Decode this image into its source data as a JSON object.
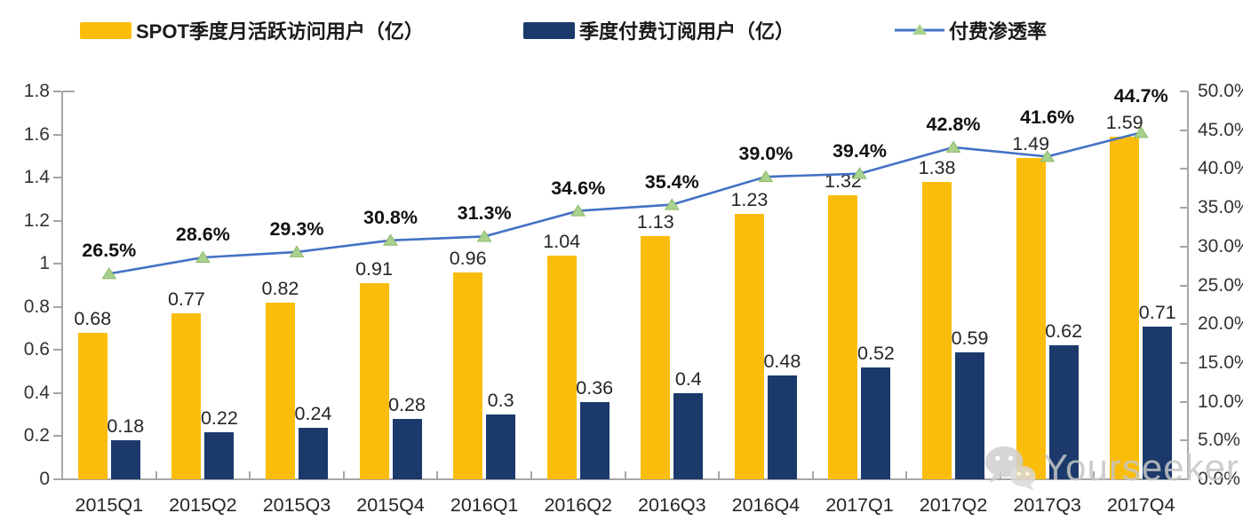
{
  "legend": {
    "items": [
      {
        "label": "SPOT季度月活跃访问用户（亿）",
        "swatch": "bar",
        "color": "#FBBD0B"
      },
      {
        "label": "季度付费订阅用户（亿）",
        "swatch": "bar",
        "color": "#1B3A6B"
      },
      {
        "label": "付费渗透率",
        "swatch": "line",
        "color": "#4472C4",
        "marker_color": "#A9D18E"
      }
    ]
  },
  "chart_data": {
    "type": "bar+line combo",
    "categories": [
      "2015Q1",
      "2015Q2",
      "2015Q3",
      "2015Q4",
      "2016Q1",
      "2016Q2",
      "2016Q3",
      "2016Q4",
      "2017Q1",
      "2017Q2",
      "2017Q3",
      "2017Q4"
    ],
    "series": [
      {
        "name": "SPOT季度月活跃访问用户（亿）",
        "type": "bar",
        "axis": "left",
        "color": "#FBBD0B",
        "values": [
          0.68,
          0.77,
          0.82,
          0.91,
          0.96,
          1.04,
          1.13,
          1.23,
          1.32,
          1.38,
          1.49,
          1.59
        ],
        "labels": [
          "0.68",
          "0.77",
          "0.82",
          "0.91",
          "0.96",
          "1.04",
          "1.13",
          "1.23",
          "1.32",
          "1.38",
          "1.49",
          "1.59"
        ]
      },
      {
        "name": "季度付费订阅用户（亿）",
        "type": "bar",
        "axis": "left",
        "color": "#1B3A6B",
        "values": [
          0.18,
          0.22,
          0.24,
          0.28,
          0.3,
          0.36,
          0.4,
          0.48,
          0.52,
          0.59,
          0.62,
          0.71
        ],
        "labels": [
          "0.18",
          "0.22",
          "0.24",
          "0.28",
          "0.3",
          "0.36",
          "0.4",
          "0.48",
          "0.52",
          "0.59",
          "0.62",
          "0.71"
        ]
      },
      {
        "name": "付费渗透率",
        "type": "line",
        "axis": "right",
        "color": "#4472C4",
        "marker": "triangle",
        "marker_color": "#A9D18E",
        "values": [
          26.5,
          28.6,
          29.3,
          30.8,
          31.3,
          34.6,
          35.4,
          39.0,
          39.4,
          42.8,
          41.6,
          44.7
        ],
        "labels": [
          "26.5%",
          "28.6%",
          "29.3%",
          "30.8%",
          "31.3%",
          "34.6%",
          "35.4%",
          "39.0%",
          "39.4%",
          "42.8%",
          "41.6%",
          "44.7%"
        ]
      }
    ],
    "y_axis_left": {
      "min": 0,
      "max": 1.8,
      "tick_values": [
        0,
        0.2,
        0.4,
        0.6,
        0.8,
        1,
        1.2,
        1.4,
        1.6,
        1.8
      ],
      "tick_labels": [
        "0",
        "0.2",
        "0.4",
        "0.6",
        "0.8",
        "1",
        "1.2",
        "1.4",
        "1.6",
        "1.8"
      ]
    },
    "y_axis_right": {
      "min": 0,
      "max": 50,
      "tick_values": [
        0,
        5,
        10,
        15,
        20,
        25,
        30,
        35,
        40,
        45,
        50
      ],
      "tick_labels": [
        "0.0%",
        "5.0%",
        "10.0%",
        "15.0%",
        "20.0%",
        "25.0%",
        "30.0%",
        "35.0%",
        "40.0%",
        "45.0%",
        "50.0%"
      ]
    },
    "grid": false,
    "legend_position": "top"
  },
  "watermark": {
    "text": "Yourseeker",
    "icon": "wechat-icon"
  },
  "colors": {
    "axis_line": "#A6A6A6",
    "text": "#333333",
    "watermark": "#C6C6C6"
  }
}
